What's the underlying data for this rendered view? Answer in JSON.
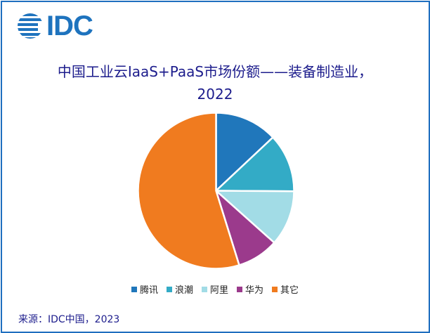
{
  "logo": {
    "text": "IDC",
    "color": "#1e73be"
  },
  "chart_data": {
    "type": "pie",
    "title": "中国工业云IaaS+PaaS市场份额——装备制造业，",
    "subtitle": "2022",
    "legend_position": "bottom",
    "categories": [
      "腾讯",
      "浪潮",
      "阿里",
      "华为",
      "其它"
    ],
    "values": [
      13.0,
      12.1,
      11.5,
      8.6,
      54.8
    ],
    "colors": [
      "#2077bb",
      "#33abc6",
      "#a2dce6",
      "#9b3a8c",
      "#f07b1f"
    ]
  },
  "source": "来源：IDC中国，2023"
}
